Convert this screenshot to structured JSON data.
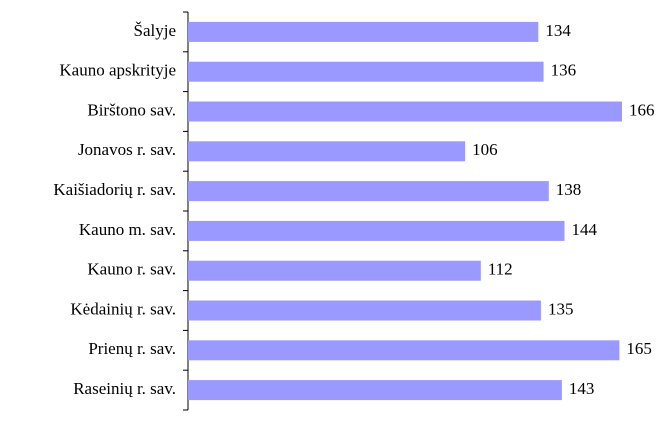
{
  "chart_data": {
    "type": "bar",
    "orientation": "horizontal",
    "categories": [
      "Šalyje",
      "Kauno apskrityje",
      "Birštono sav.",
      "Jonavos r. sav.",
      "Kaišiadorių r. sav.",
      "Kauno m. sav.",
      "Kauno r. sav.",
      "Kėdainių r. sav.",
      "Prienų r. sav.",
      "Raseinių r. sav."
    ],
    "values": [
      134,
      136,
      166,
      106,
      138,
      144,
      112,
      135,
      165,
      143
    ],
    "color": "#9999ff"
  }
}
